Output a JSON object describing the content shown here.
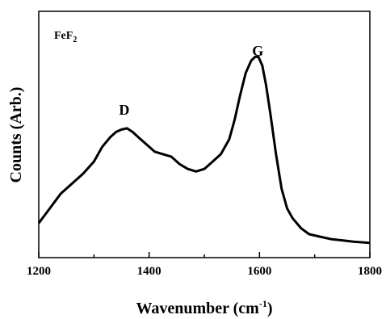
{
  "chart_data": {
    "type": "line",
    "title": "",
    "xlabel": {
      "text": "Wavenumber (cm",
      "sup": "-1",
      "suffix": ")"
    },
    "ylabel": "Counts (Arb.)",
    "xlim": [
      1200,
      1800
    ],
    "ylim": [
      0,
      100
    ],
    "xticks": [
      1200,
      1400,
      1600,
      1800
    ],
    "yticks_visible": false,
    "grid": false,
    "sample_label": {
      "base": "FeF",
      "sub": "2"
    },
    "peak_labels": [
      {
        "text": "D",
        "x": 1355,
        "y": 58
      },
      {
        "text": "G",
        "x": 1597,
        "y": 82
      }
    ],
    "series": [
      {
        "color": "#000000",
        "x": [
          1200,
          1220,
          1240,
          1260,
          1280,
          1300,
          1315,
          1330,
          1340,
          1350,
          1360,
          1370,
          1380,
          1395,
          1410,
          1425,
          1440,
          1455,
          1470,
          1485,
          1500,
          1515,
          1530,
          1545,
          1555,
          1565,
          1575,
          1585,
          1592,
          1598,
          1605,
          1612,
          1620,
          1630,
          1640,
          1650,
          1660,
          1675,
          1690,
          1710,
          1730,
          1750,
          1770,
          1800
        ],
        "y": [
          14,
          20,
          26,
          30,
          34,
          39,
          45,
          49,
          51,
          52,
          52.5,
          51,
          49,
          46,
          43,
          42,
          41,
          38,
          36,
          35,
          36,
          39,
          42,
          48,
          56,
          66,
          75,
          80,
          81.5,
          81.5,
          78,
          70,
          58,
          42,
          28,
          20,
          16,
          12,
          9.5,
          8.5,
          7.5,
          7,
          6.5,
          6
        ]
      }
    ]
  }
}
